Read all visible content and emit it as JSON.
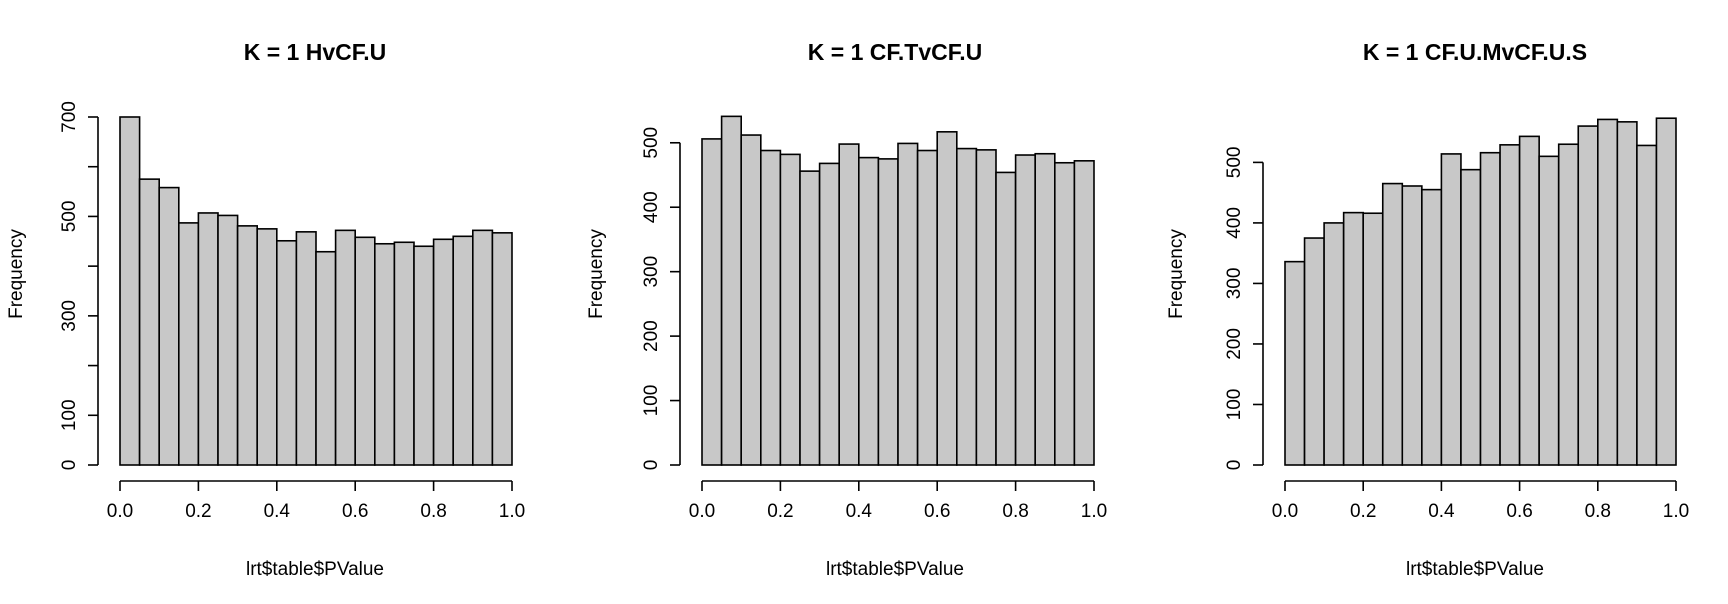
{
  "chart_data": [
    {
      "type": "bar",
      "title": "K = 1 HvCF.U",
      "xlabel": "lrt$table$PValue",
      "ylabel": "Frequency",
      "bin_edges": [
        0.0,
        0.05,
        0.1,
        0.15,
        0.2,
        0.25,
        0.3,
        0.35,
        0.4,
        0.45,
        0.5,
        0.55,
        0.6,
        0.65,
        0.7,
        0.75,
        0.8,
        0.85,
        0.9,
        0.95,
        1.0
      ],
      "values": [
        700,
        575,
        558,
        487,
        507,
        502,
        481,
        475,
        451,
        469,
        429,
        472,
        458,
        445,
        448,
        440,
        454,
        460,
        472,
        467
      ],
      "xlim": [
        0,
        1
      ],
      "ylim": [
        0,
        700
      ],
      "xticks": [
        0.0,
        0.2,
        0.4,
        0.6,
        0.8,
        1.0
      ],
      "xtick_labels": [
        "0.0",
        "0.2",
        "0.4",
        "0.6",
        "0.8",
        "1.0"
      ],
      "yticks": [
        0,
        100,
        200,
        300,
        400,
        500,
        600,
        700
      ],
      "ytick_labels": [
        "0",
        "100",
        "",
        "300",
        "",
        "500",
        "",
        "700"
      ],
      "fill_color": "#c8c8c8"
    },
    {
      "type": "bar",
      "title": "K = 1 CF.TvCF.U",
      "xlabel": "lrt$table$PValue",
      "ylabel": "Frequency",
      "bin_edges": [
        0.0,
        0.05,
        0.1,
        0.15,
        0.2,
        0.25,
        0.3,
        0.35,
        0.4,
        0.45,
        0.5,
        0.55,
        0.6,
        0.65,
        0.7,
        0.75,
        0.8,
        0.85,
        0.9,
        0.95,
        1.0
      ],
      "values": [
        506,
        541,
        512,
        488,
        482,
        456,
        468,
        498,
        477,
        475,
        499,
        488,
        517,
        491,
        489,
        454,
        481,
        483,
        469,
        472
      ],
      "xlim": [
        0,
        1
      ],
      "ylim": [
        0,
        540
      ],
      "xticks": [
        0.0,
        0.2,
        0.4,
        0.6,
        0.8,
        1.0
      ],
      "xtick_labels": [
        "0.0",
        "0.2",
        "0.4",
        "0.6",
        "0.8",
        "1.0"
      ],
      "yticks": [
        0,
        100,
        200,
        300,
        400,
        500
      ],
      "ytick_labels": [
        "0",
        "100",
        "200",
        "300",
        "400",
        "500"
      ],
      "fill_color": "#c8c8c8"
    },
    {
      "type": "bar",
      "title": "K = 1 CF.U.MvCF.U.S",
      "xlabel": "lrt$table$PValue",
      "ylabel": "Frequency",
      "bin_edges": [
        0.0,
        0.05,
        0.1,
        0.15,
        0.2,
        0.25,
        0.3,
        0.35,
        0.4,
        0.45,
        0.5,
        0.55,
        0.6,
        0.65,
        0.7,
        0.75,
        0.8,
        0.85,
        0.9,
        0.95,
        1.0
      ],
      "values": [
        336,
        375,
        400,
        417,
        416,
        465,
        461,
        455,
        514,
        488,
        516,
        529,
        543,
        510,
        530,
        560,
        571,
        567,
        528,
        573
      ],
      "xlim": [
        0,
        1
      ],
      "ylim": [
        0,
        575
      ],
      "xticks": [
        0.0,
        0.2,
        0.4,
        0.6,
        0.8,
        1.0
      ],
      "xtick_labels": [
        "0.0",
        "0.2",
        "0.4",
        "0.6",
        "0.8",
        "1.0"
      ],
      "yticks": [
        0,
        100,
        200,
        300,
        400,
        500
      ],
      "ytick_labels": [
        "0",
        "100",
        "200",
        "300",
        "400",
        "500"
      ],
      "fill_color": "#c8c8c8"
    }
  ]
}
